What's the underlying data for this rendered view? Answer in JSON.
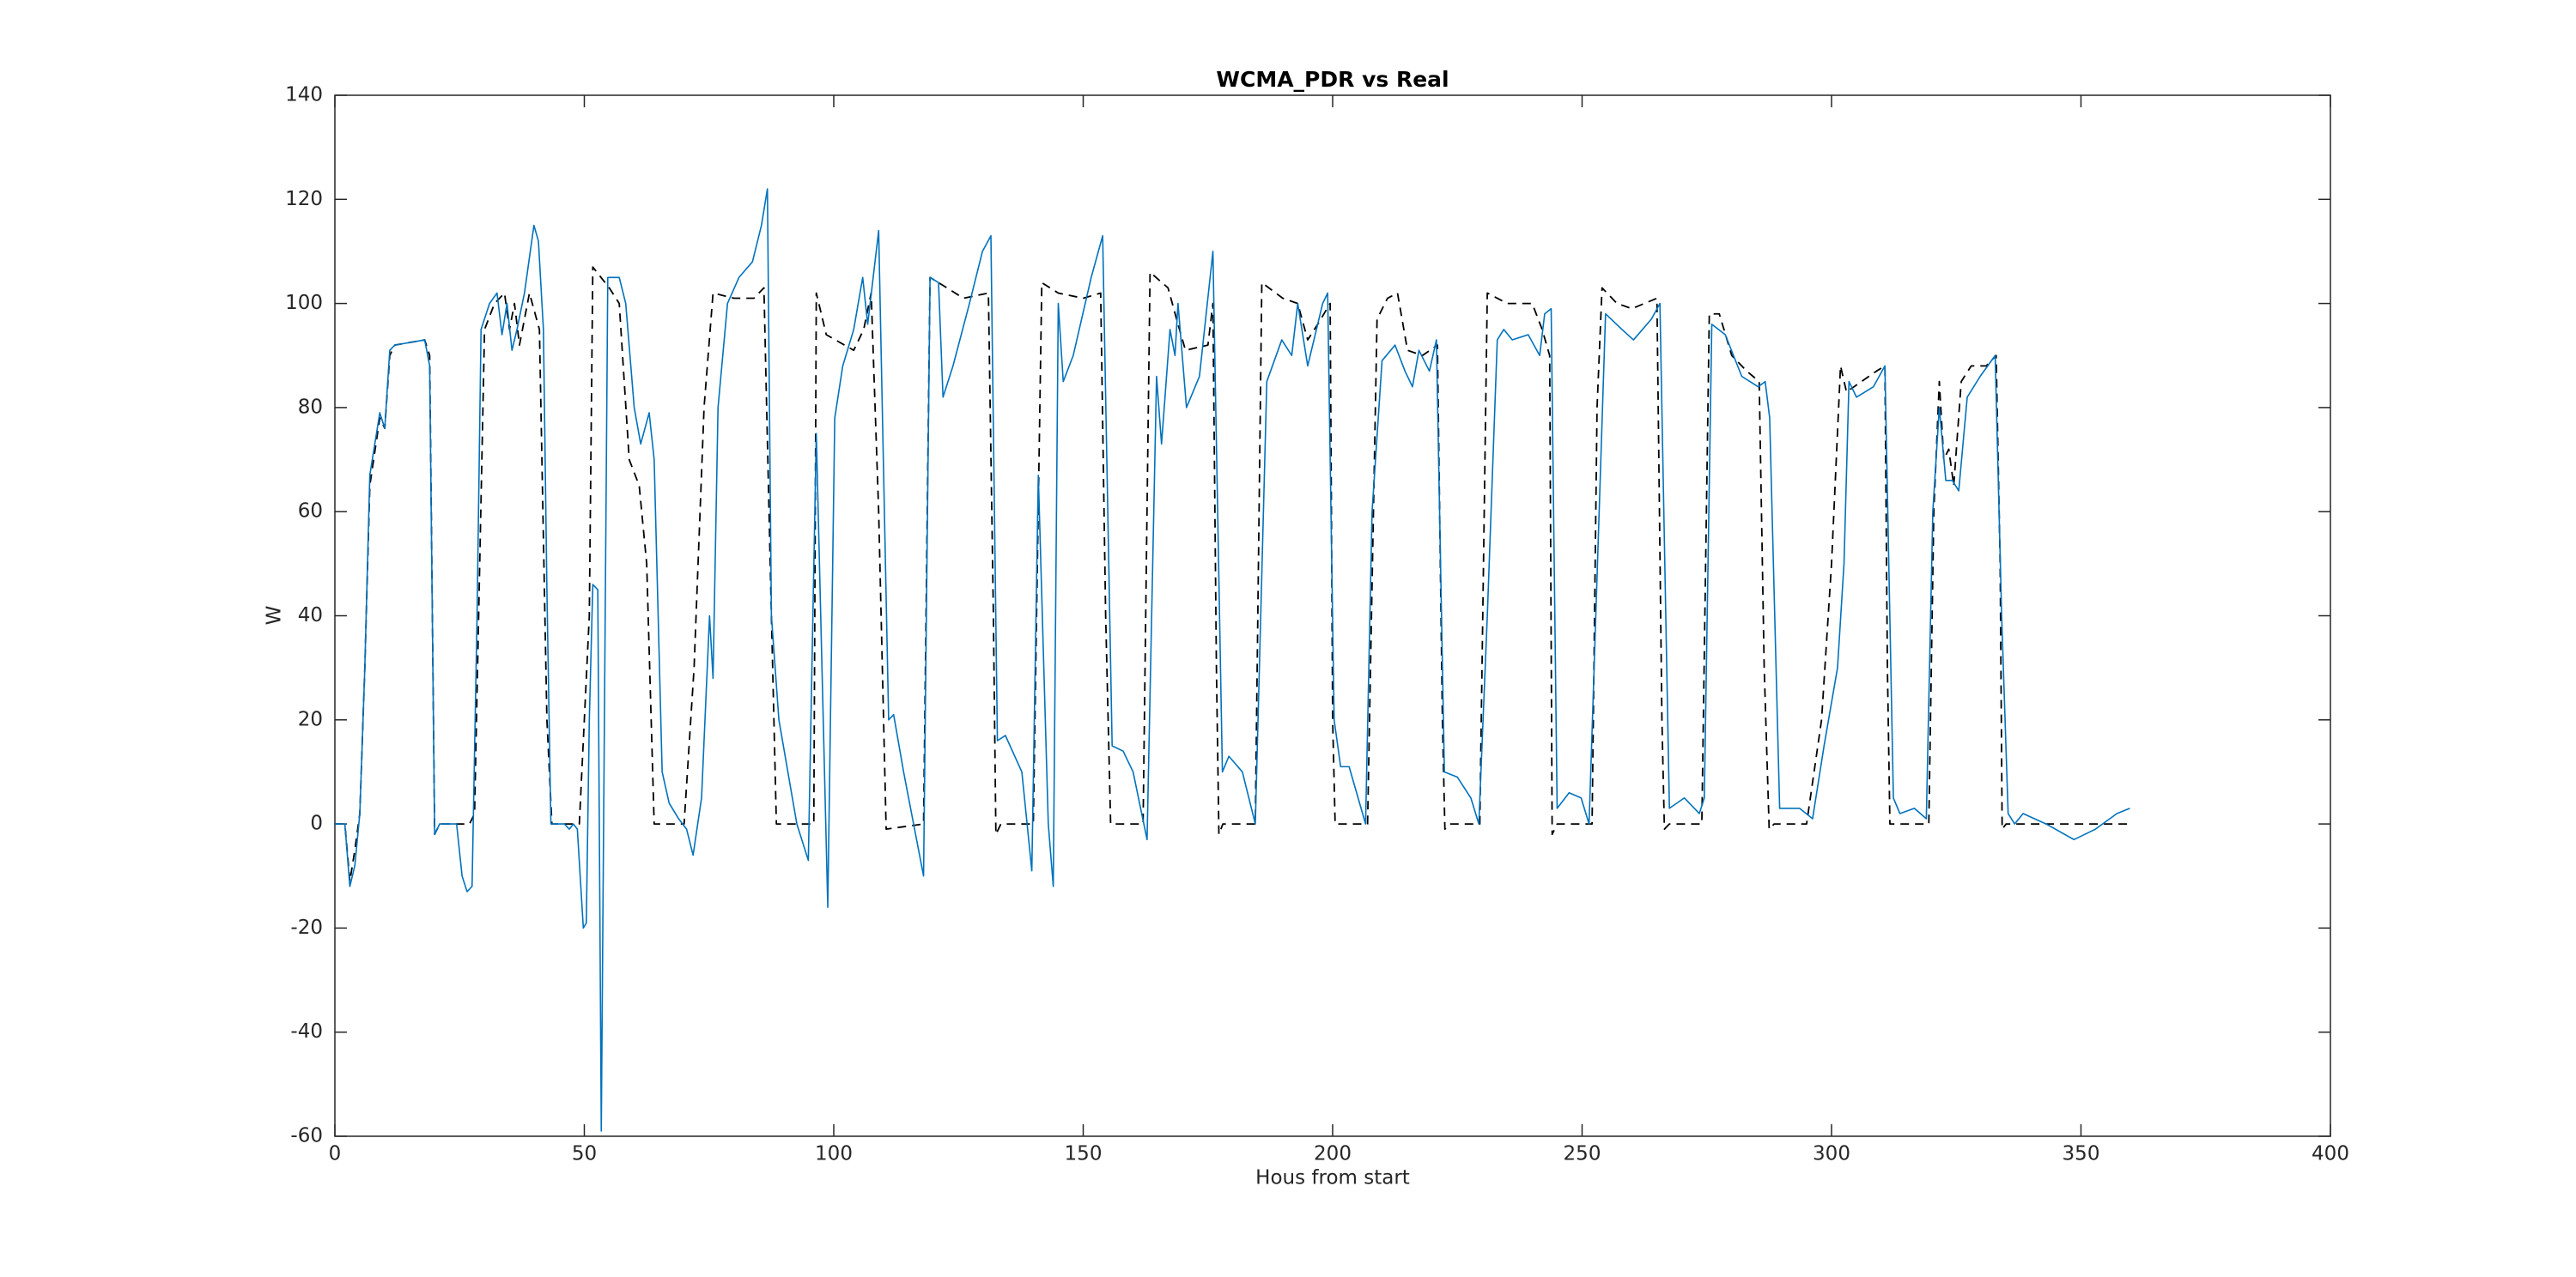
{
  "chart_data": {
    "type": "line",
    "title": "WCMA_PDR vs Real",
    "xlabel": "Hous from start",
    "ylabel": "W",
    "xlim": [
      0,
      400
    ],
    "xticks": [
      0,
      50,
      100,
      150,
      200,
      250,
      300,
      350,
      400
    ],
    "ylim": [
      -60,
      140
    ],
    "yticks": [
      -60,
      -40,
      -20,
      0,
      20,
      40,
      60,
      80,
      100,
      120,
      140
    ],
    "grid": false,
    "series": [
      {
        "color": "#0072bd",
        "linestyle": "solid",
        "x": [
          0,
          2,
          3,
          4,
          5,
          6,
          7,
          9,
          10,
          11,
          12,
          18,
          19,
          20,
          21,
          24.4,
          25.5,
          26.5,
          27.5,
          28.5,
          29.3,
          31,
          32.5,
          33.5,
          34.5,
          35.5,
          36.5,
          38,
          39.9,
          40.8,
          41.8,
          42.5,
          43.3,
          46,
          47,
          47.8,
          48.6,
          49.8,
          50.4,
          51,
          51.7,
          52.7,
          53.4,
          54.7,
          57,
          58.3,
          60,
          61.3,
          63,
          64,
          65.6,
          67,
          68.9,
          70.5,
          71.8,
          73.5,
          75.1,
          75.8,
          76.8,
          78.7,
          81,
          83.7,
          85.5,
          86.7,
          87.5,
          89,
          92.6,
          94.9,
          96.5,
          98.8,
          100.2,
          101.8,
          104,
          105.8,
          106.8,
          109,
          111,
          112,
          114,
          118,
          119.3,
          121,
          121.9,
          123.9,
          127.2,
          129.8,
          131.5,
          132.8,
          134.4,
          137.7,
          139.7,
          141,
          143,
          144,
          145,
          146,
          148,
          151.6,
          153.9,
          155.8,
          158,
          160,
          162.8,
          164.7,
          165.7,
          167.4,
          168.4,
          169,
          170.7,
          173.3,
          176,
          177.9,
          179.2,
          181.9,
          184.5,
          186.8,
          189.8,
          191.8,
          193,
          195,
          198,
          199,
          200.3,
          201.6,
          203.3,
          206.6,
          207.9,
          209.9,
          212.5,
          214.5,
          216,
          217.3,
          219.4,
          220.8,
          222.4,
          225,
          227.7,
          229.3,
          231,
          233,
          234.3,
          236,
          239.2,
          241.5,
          242.5,
          243.8,
          245,
          247.4,
          249.8,
          251.4,
          254.7,
          258,
          260.3,
          263.9,
          265.6,
          267.5,
          270.5,
          273.5,
          274.5,
          276,
          278.7,
          282,
          285.3,
          286.7,
          287.6,
          289.6,
          293.6,
          296.2,
          298.5,
          301.2,
          302.5,
          303.5,
          305,
          308.4,
          310.7,
          312.4,
          313.7,
          316.6,
          319,
          320.3,
          321.6,
          322.9,
          324.2,
          325.5,
          327.2,
          329.8,
          332.8,
          334.1,
          335.4,
          336.7,
          338.4,
          343,
          348.6,
          352.9,
          357.2,
          359.8
        ],
        "values": [
          0,
          0,
          -12,
          -8,
          2,
          30,
          67,
          79,
          76,
          91,
          92,
          93,
          88,
          -2,
          0,
          0,
          -10,
          -13,
          -12,
          40,
          95,
          100,
          102,
          94,
          100,
          91,
          95,
          102,
          115,
          112,
          95,
          45,
          0,
          0,
          -1,
          0,
          -1,
          -20,
          -19,
          20,
          46,
          45,
          -59,
          105,
          105,
          100,
          80,
          73,
          79,
          70,
          10,
          4,
          1,
          -1,
          -6,
          5,
          40,
          28,
          80,
          100,
          105,
          108,
          115,
          122,
          40,
          20,
          0,
          -7,
          75,
          -16,
          78,
          88,
          95,
          105,
          96,
          114,
          20,
          21,
          10,
          -10,
          105,
          104,
          82,
          88,
          100,
          110,
          113,
          16,
          17,
          10,
          -9,
          67,
          0,
          -12,
          100,
          85,
          90,
          105,
          113,
          15,
          14,
          10,
          -3,
          86,
          73,
          95,
          90,
          100,
          80,
          86,
          110,
          10,
          13,
          10,
          0,
          85,
          93,
          90,
          100,
          88,
          100,
          102,
          20,
          11,
          11,
          0,
          60,
          89,
          92,
          87,
          84,
          91,
          87,
          93,
          10,
          9,
          5,
          0,
          40,
          93,
          95,
          93,
          94,
          90,
          98,
          99,
          3,
          6,
          5,
          0,
          98,
          95,
          93,
          97,
          100,
          3,
          5,
          2,
          5,
          96,
          94,
          86,
          84,
          85,
          78,
          3,
          3,
          1,
          15,
          30,
          50,
          85,
          82,
          84,
          88,
          5,
          2,
          3,
          1,
          60,
          80,
          66,
          66,
          64,
          82,
          86,
          90,
          40,
          2,
          0,
          2,
          0,
          -3,
          -1,
          2,
          3
        ]
      },
      {
        "color": "#000000",
        "linestyle": "dashed",
        "x": [
          0,
          2,
          3,
          4,
          5,
          6,
          7,
          9,
          10,
          11,
          12,
          18,
          19,
          20,
          21,
          27,
          28,
          30,
          32,
          34,
          35,
          36,
          37,
          39,
          41,
          42.5,
          43.5,
          49,
          51,
          51.7,
          55,
          57,
          59,
          61,
          62.5,
          64,
          70,
          72,
          74,
          75.8,
          80,
          84,
          86,
          87.5,
          88.5,
          96,
          96.5,
          98.5,
          104,
          106,
          107.5,
          109,
          110.5,
          118,
          119.3,
          121,
          126,
          131,
          132,
          132.5,
          133.5,
          140,
          141.7,
          145,
          150,
          153.5,
          154.5,
          155.5,
          162,
          163.4,
          167,
          169,
          170.5,
          175,
          176,
          176.7,
          177.2,
          178,
          184.5,
          185.8,
          190,
          193,
          195,
          197,
          199.5,
          200,
          200.5,
          207,
          208.9,
          211,
          213,
          215,
          218,
          221,
          222,
          222.5,
          223.5,
          229.5,
          231,
          235,
          240,
          242,
          243.5,
          244,
          245,
          252,
          253,
          254,
          257,
          260,
          265,
          266,
          266.5,
          267.5,
          274,
          275.5,
          277.5,
          280,
          283,
          285.5,
          286.5,
          287.5,
          288.5,
          295,
          298,
          300,
          301.8,
          303,
          306,
          309,
          310.7,
          311.2,
          311.7,
          319.5,
          320.5,
          321.6,
          322.5,
          323.5,
          324.5,
          326,
          328,
          331,
          333,
          333.8,
          334.2,
          335,
          360
        ],
        "values": [
          0,
          0,
          -11,
          -5,
          2,
          30,
          65,
          78,
          76,
          90,
          92,
          93,
          90,
          -2,
          0,
          0,
          2,
          95,
          100,
          102,
          95,
          100,
          92,
          102,
          95,
          20,
          0,
          0,
          40,
          107,
          103,
          100,
          70,
          65,
          50,
          0,
          0,
          30,
          80,
          102,
          101,
          101,
          103,
          40,
          0,
          0,
          102,
          94,
          91,
          95,
          102,
          60,
          -1,
          0,
          105,
          104,
          101,
          102,
          40,
          -2,
          0,
          0,
          104,
          102,
          101,
          102,
          40,
          0,
          0,
          106,
          103,
          96,
          91,
          92,
          100,
          30,
          -2,
          0,
          0,
          104,
          101,
          100,
          93,
          96,
          100,
          20,
          0,
          0,
          97,
          101,
          102,
          91,
          90,
          92,
          20,
          -1,
          0,
          0,
          102,
          100,
          100,
          95,
          90,
          -2,
          0,
          0,
          80,
          103,
          100,
          99,
          101,
          20,
          -1,
          0,
          0,
          98,
          98,
          90,
          87,
          85,
          30,
          -1,
          0,
          0,
          20,
          50,
          88,
          83,
          85,
          87,
          88,
          30,
          0,
          0,
          60,
          85,
          70,
          72,
          65,
          85,
          88,
          88,
          90,
          50,
          -1,
          0,
          0
        ]
      }
    ]
  }
}
